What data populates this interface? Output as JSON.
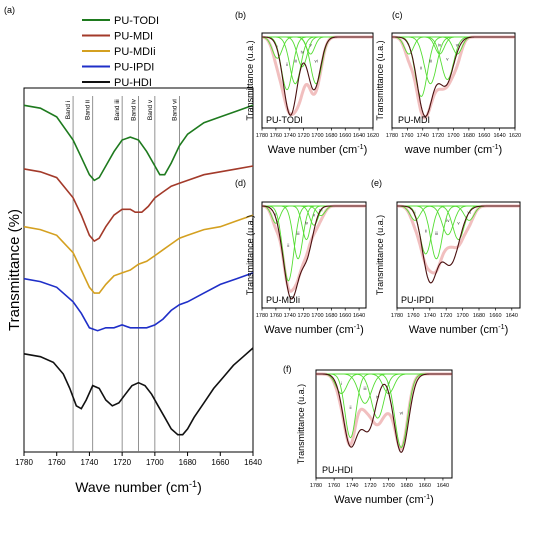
{
  "chart_data": [
    {
      "panel": "(a)",
      "type": "line",
      "xlabel": "Wave number (cm",
      "xlabel_sup": "-1",
      "xlabel_close": ")",
      "ylabel": "Transmittance (%)",
      "xlim": [
        1780,
        1640
      ],
      "x_ticks": [
        1780,
        1760,
        1740,
        1720,
        1700,
        1680,
        1660,
        1640
      ],
      "legend": {
        "position": "top-center"
      },
      "bands": [
        {
          "label": "Band i",
          "x": 1750
        },
        {
          "label": "Band ii",
          "x": 1738
        },
        {
          "label": "Band iii",
          "x": 1720
        },
        {
          "label": "Band iv",
          "x": 1710
        },
        {
          "label": "Band v",
          "x": 1700
        },
        {
          "label": "Band vi",
          "x": 1685
        }
      ],
      "series": [
        {
          "name": "PU-TODI",
          "color": "#1e7a1e",
          "offset": 4.0,
          "x": [
            1780,
            1770,
            1760,
            1750,
            1745,
            1740,
            1737,
            1734,
            1730,
            1725,
            1720,
            1715,
            1710,
            1705,
            1700,
            1697,
            1694,
            1690,
            1685,
            1680,
            1670,
            1660,
            1650,
            1640
          ],
          "y": [
            0.0,
            -0.05,
            -0.2,
            -0.6,
            -0.9,
            -1.2,
            -1.3,
            -1.25,
            -1.05,
            -0.8,
            -0.6,
            -0.55,
            -0.6,
            -0.8,
            -1.05,
            -1.2,
            -1.2,
            -1.0,
            -0.7,
            -0.5,
            -0.3,
            -0.2,
            -0.1,
            0.0
          ]
        },
        {
          "name": "PU-MDI",
          "color": "#a33a2a",
          "offset": 2.9,
          "x": [
            1780,
            1770,
            1760,
            1750,
            1745,
            1740,
            1737,
            1734,
            1730,
            1725,
            1720,
            1715,
            1712,
            1708,
            1704,
            1700,
            1695,
            1690,
            1685,
            1680,
            1670,
            1660,
            1650,
            1640
          ],
          "y": [
            0.0,
            -0.05,
            -0.15,
            -0.5,
            -0.8,
            -1.15,
            -1.25,
            -1.2,
            -1.0,
            -0.8,
            -0.7,
            -0.7,
            -0.75,
            -0.75,
            -0.65,
            -0.5,
            -0.4,
            -0.3,
            -0.25,
            -0.2,
            -0.1,
            -0.05,
            0.0,
            0.05
          ]
        },
        {
          "name": "PU-MDIi",
          "color": "#d4a020",
          "offset": 1.9,
          "x": [
            1780,
            1770,
            1760,
            1750,
            1745,
            1740,
            1737,
            1734,
            1730,
            1725,
            1720,
            1715,
            1710,
            1705,
            1700,
            1695,
            1690,
            1685,
            1680,
            1670,
            1660,
            1650,
            1640
          ],
          "y": [
            0.0,
            -0.05,
            -0.15,
            -0.45,
            -0.75,
            -1.05,
            -1.15,
            -1.15,
            -1.0,
            -0.85,
            -0.8,
            -0.75,
            -0.65,
            -0.6,
            -0.5,
            -0.4,
            -0.3,
            -0.2,
            -0.15,
            -0.05,
            0.0,
            0.1,
            0.2
          ]
        },
        {
          "name": "PU-IPDI",
          "color": "#1f2fc8",
          "offset": 1.0,
          "x": [
            1780,
            1770,
            1760,
            1750,
            1745,
            1740,
            1735,
            1730,
            1725,
            1720,
            1715,
            1710,
            1705,
            1700,
            1695,
            1690,
            1685,
            1680,
            1670,
            1660,
            1650,
            1640
          ],
          "y": [
            0.0,
            -0.05,
            -0.15,
            -0.4,
            -0.6,
            -0.85,
            -0.9,
            -0.85,
            -0.85,
            -0.8,
            -0.85,
            -0.85,
            -0.85,
            -0.8,
            -0.7,
            -0.55,
            -0.45,
            -0.4,
            -0.25,
            -0.1,
            0.0,
            0.1
          ]
        },
        {
          "name": "PU-HDI",
          "color": "#111111",
          "offset": -0.3,
          "x": [
            1780,
            1770,
            1762,
            1756,
            1752,
            1748,
            1745,
            1742,
            1738,
            1734,
            1730,
            1726,
            1722,
            1718,
            1714,
            1710,
            1706,
            1702,
            1698,
            1694,
            1690,
            1686,
            1683,
            1680,
            1676,
            1670,
            1664,
            1658,
            1652,
            1646,
            1640
          ],
          "y": [
            0.0,
            -0.05,
            -0.15,
            -0.35,
            -0.6,
            -0.9,
            -0.95,
            -0.8,
            -0.55,
            -0.6,
            -0.8,
            -0.9,
            -0.85,
            -0.7,
            -0.55,
            -0.5,
            -0.55,
            -0.7,
            -0.9,
            -1.1,
            -1.3,
            -1.4,
            -1.4,
            -1.3,
            -1.1,
            -0.85,
            -0.6,
            -0.4,
            -0.2,
            -0.05,
            0.1
          ]
        }
      ]
    },
    {
      "panel": "(b)",
      "label": "PU-TODI",
      "type": "line",
      "xlabel": "Wave number (cm",
      "xlabel_sup": "-1",
      "xlabel_close": ")",
      "ylabel": "Transmittance (u.a.)",
      "xlim": [
        1780,
        1620
      ],
      "x_ticks": [
        1780,
        1760,
        1740,
        1720,
        1700,
        1680,
        1660,
        1640,
        1620
      ],
      "measured": {
        "centers": [
          1739,
          1705
        ],
        "depth": [
          0.92,
          0.62
        ],
        "width": [
          10,
          9
        ]
      },
      "components": [
        {
          "label": "i",
          "center": 1758,
          "depth": 0.25,
          "width": 7
        },
        {
          "label": "ii",
          "center": 1744,
          "depth": 0.62,
          "width": 8
        },
        {
          "label": "iii",
          "center": 1732,
          "depth": 0.55,
          "width": 8
        },
        {
          "label": "iv",
          "center": 1722,
          "depth": 0.35,
          "width": 7
        },
        {
          "label": "v",
          "center": 1710,
          "depth": 0.2,
          "width": 6
        },
        {
          "label": "vi",
          "center": 1702,
          "depth": 0.55,
          "width": 8
        }
      ]
    },
    {
      "panel": "(c)",
      "label": "PU-MDI",
      "type": "line",
      "xlabel": "wave number (cm",
      "xlabel_sup": "-1",
      "xlabel_close": ")",
      "ylabel": "Transmittance (u.a.)",
      "xlim": [
        1780,
        1620
      ],
      "x_ticks": [
        1780,
        1760,
        1740,
        1720,
        1700,
        1680,
        1660,
        1640,
        1620
      ],
      "measured": {
        "centers": [
          1737,
          1710
        ],
        "depth": [
          0.92,
          0.55
        ],
        "width": [
          10,
          10
        ]
      },
      "components": [
        {
          "label": "i",
          "center": 1758,
          "depth": 0.2,
          "width": 6
        },
        {
          "label": "ii",
          "center": 1742,
          "depth": 0.7,
          "width": 8
        },
        {
          "label": "iii",
          "center": 1730,
          "depth": 0.55,
          "width": 8
        },
        {
          "label": "iv",
          "center": 1718,
          "depth": 0.2,
          "width": 6
        },
        {
          "label": "v",
          "center": 1708,
          "depth": 0.5,
          "width": 8
        },
        {
          "label": "vi",
          "center": 1695,
          "depth": 0.2,
          "width": 6
        }
      ]
    },
    {
      "panel": "(d)",
      "label": "PU-MDIi",
      "type": "line",
      "xlabel": "Wave number (cm",
      "xlabel_sup": "-1",
      "xlabel_close": ")",
      "ylabel": "Transmittance (u.a.)",
      "xlim": [
        1780,
        1630
      ],
      "x_ticks": [
        1780,
        1760,
        1740,
        1720,
        1700,
        1680,
        1660,
        1640
      ],
      "measured": {
        "centers": [
          1738,
          1715
        ],
        "depth": [
          0.95,
          0.45
        ],
        "width": [
          11,
          9
        ]
      },
      "components": [
        {
          "label": "i",
          "center": 1760,
          "depth": 0.18,
          "width": 6
        },
        {
          "label": "ii",
          "center": 1742,
          "depth": 0.78,
          "width": 8
        },
        {
          "label": "iii",
          "center": 1728,
          "depth": 0.55,
          "width": 7
        },
        {
          "label": "iv",
          "center": 1716,
          "depth": 0.35,
          "width": 6
        },
        {
          "label": "v",
          "center": 1705,
          "depth": 0.2,
          "width": 6
        },
        {
          "label": "vi",
          "center": 1695,
          "depth": 0.1,
          "width": 6
        }
      ]
    },
    {
      "panel": "(e)",
      "label": "PU-IPDI",
      "type": "line",
      "xlabel": "Wave number (cm",
      "xlabel_sup": "-1",
      "xlabel_close": ")",
      "ylabel": "Transmittance (u.a.)",
      "xlim": [
        1780,
        1630
      ],
      "x_ticks": [
        1780,
        1760,
        1740,
        1720,
        1700,
        1680,
        1660,
        1640
      ],
      "measured": {
        "centers": [
          1740,
          1715
        ],
        "depth": [
          0.75,
          0.6
        ],
        "width": [
          9,
          11
        ]
      },
      "components": [
        {
          "label": "i",
          "center": 1758,
          "depth": 0.15,
          "width": 6
        },
        {
          "label": "ii",
          "center": 1745,
          "depth": 0.5,
          "width": 7
        },
        {
          "label": "iii",
          "center": 1732,
          "depth": 0.55,
          "width": 7
        },
        {
          "label": "iv",
          "center": 1718,
          "depth": 0.3,
          "width": 7
        },
        {
          "label": "v",
          "center": 1705,
          "depth": 0.35,
          "width": 7
        },
        {
          "label": "vi",
          "center": 1692,
          "depth": 0.15,
          "width": 6
        }
      ]
    },
    {
      "panel": "(f)",
      "label": "PU-HDI",
      "type": "line",
      "xlabel": "Wave number (cm",
      "xlabel_sup": "-1",
      "xlabel_close": ")",
      "ylabel": "Transmittance (u.a.)",
      "xlim": [
        1780,
        1630
      ],
      "x_ticks": [
        1780,
        1760,
        1740,
        1720,
        1700,
        1680,
        1660,
        1640
      ],
      "measured": {
        "centers": [
          1742,
          1722,
          1686
        ],
        "depth": [
          0.72,
          0.55,
          0.8
        ],
        "width": [
          8,
          8,
          8
        ]
      },
      "components": [
        {
          "label": "i",
          "center": 1752,
          "depth": 0.2,
          "width": 6
        },
        {
          "label": "ii",
          "center": 1742,
          "depth": 0.65,
          "width": 6
        },
        {
          "label": "iii",
          "center": 1726,
          "depth": 0.3,
          "width": 7
        },
        {
          "label": "iv",
          "center": 1712,
          "depth": 0.45,
          "width": 7
        },
        {
          "label": "v",
          "center": 1700,
          "depth": 0.2,
          "width": 6
        },
        {
          "label": "vi",
          "center": 1686,
          "depth": 0.75,
          "width": 7
        }
      ]
    }
  ],
  "colors": {
    "fit": "#55dd33",
    "measured": "#4a1010",
    "envelope": "#e07070",
    "axis": "#000000"
  }
}
